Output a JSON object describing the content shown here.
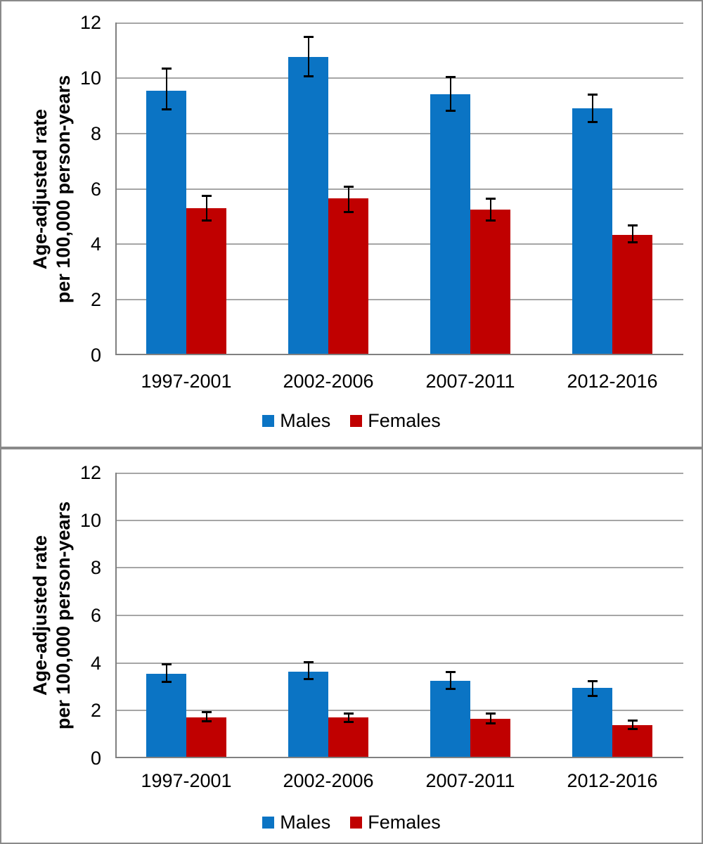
{
  "figure": {
    "description": "Two stacked grouped bar charts (Males vs Females) with 95% CI error bars",
    "panels": [
      "top",
      "bottom"
    ]
  },
  "colors": {
    "males": "#0B74C4",
    "females": "#C00000",
    "gridline": "#A6A6A6",
    "axis": "#808080",
    "panel_border": "#8A8A8A",
    "error_bar": "#000000"
  },
  "chart_data": [
    {
      "type": "bar",
      "title": "",
      "categories": [
        "1997-2001",
        "2002-2006",
        "2007-2011",
        "2012-2016"
      ],
      "series": [
        {
          "name": "Males",
          "color": "#0B74C4",
          "values": [
            9.55,
            10.75,
            9.4,
            8.9
          ],
          "ci_low": [
            8.85,
            10.05,
            8.8,
            8.4
          ],
          "ci_high": [
            10.35,
            11.5,
            10.05,
            9.4
          ]
        },
        {
          "name": "Females",
          "color": "#C00000",
          "values": [
            5.3,
            5.65,
            5.25,
            4.35
          ],
          "ci_low": [
            4.85,
            5.15,
            4.85,
            4.05
          ],
          "ci_high": [
            5.75,
            6.1,
            5.65,
            4.7
          ]
        }
      ],
      "ylabel": "Age-adjusted rate\nper 100,000 person-years",
      "xlabel": "",
      "ylim": [
        0,
        12
      ],
      "yticks": [
        0,
        2,
        4,
        6,
        8,
        10,
        12
      ],
      "grid": true,
      "legend_position": "bottom",
      "error_bars": true
    },
    {
      "type": "bar",
      "title": "",
      "categories": [
        "1997-2001",
        "2002-2006",
        "2007-2011",
        "2012-2016"
      ],
      "series": [
        {
          "name": "Males",
          "color": "#0B74C4",
          "values": [
            3.55,
            3.65,
            3.25,
            2.95
          ],
          "ci_low": [
            3.2,
            3.3,
            2.9,
            2.6
          ],
          "ci_high": [
            3.95,
            4.05,
            3.65,
            3.25
          ]
        },
        {
          "name": "Females",
          "color": "#C00000",
          "values": [
            1.7,
            1.7,
            1.65,
            1.4
          ],
          "ci_low": [
            1.55,
            1.5,
            1.45,
            1.2
          ],
          "ci_high": [
            1.95,
            1.9,
            1.9,
            1.6
          ]
        }
      ],
      "ylabel": "Age-adjusted rate\nper 100,000 person-years",
      "xlabel": "",
      "ylim": [
        0,
        12
      ],
      "yticks": [
        0,
        2,
        4,
        6,
        8,
        10,
        12
      ],
      "grid": true,
      "legend_position": "bottom",
      "error_bars": true
    }
  ]
}
